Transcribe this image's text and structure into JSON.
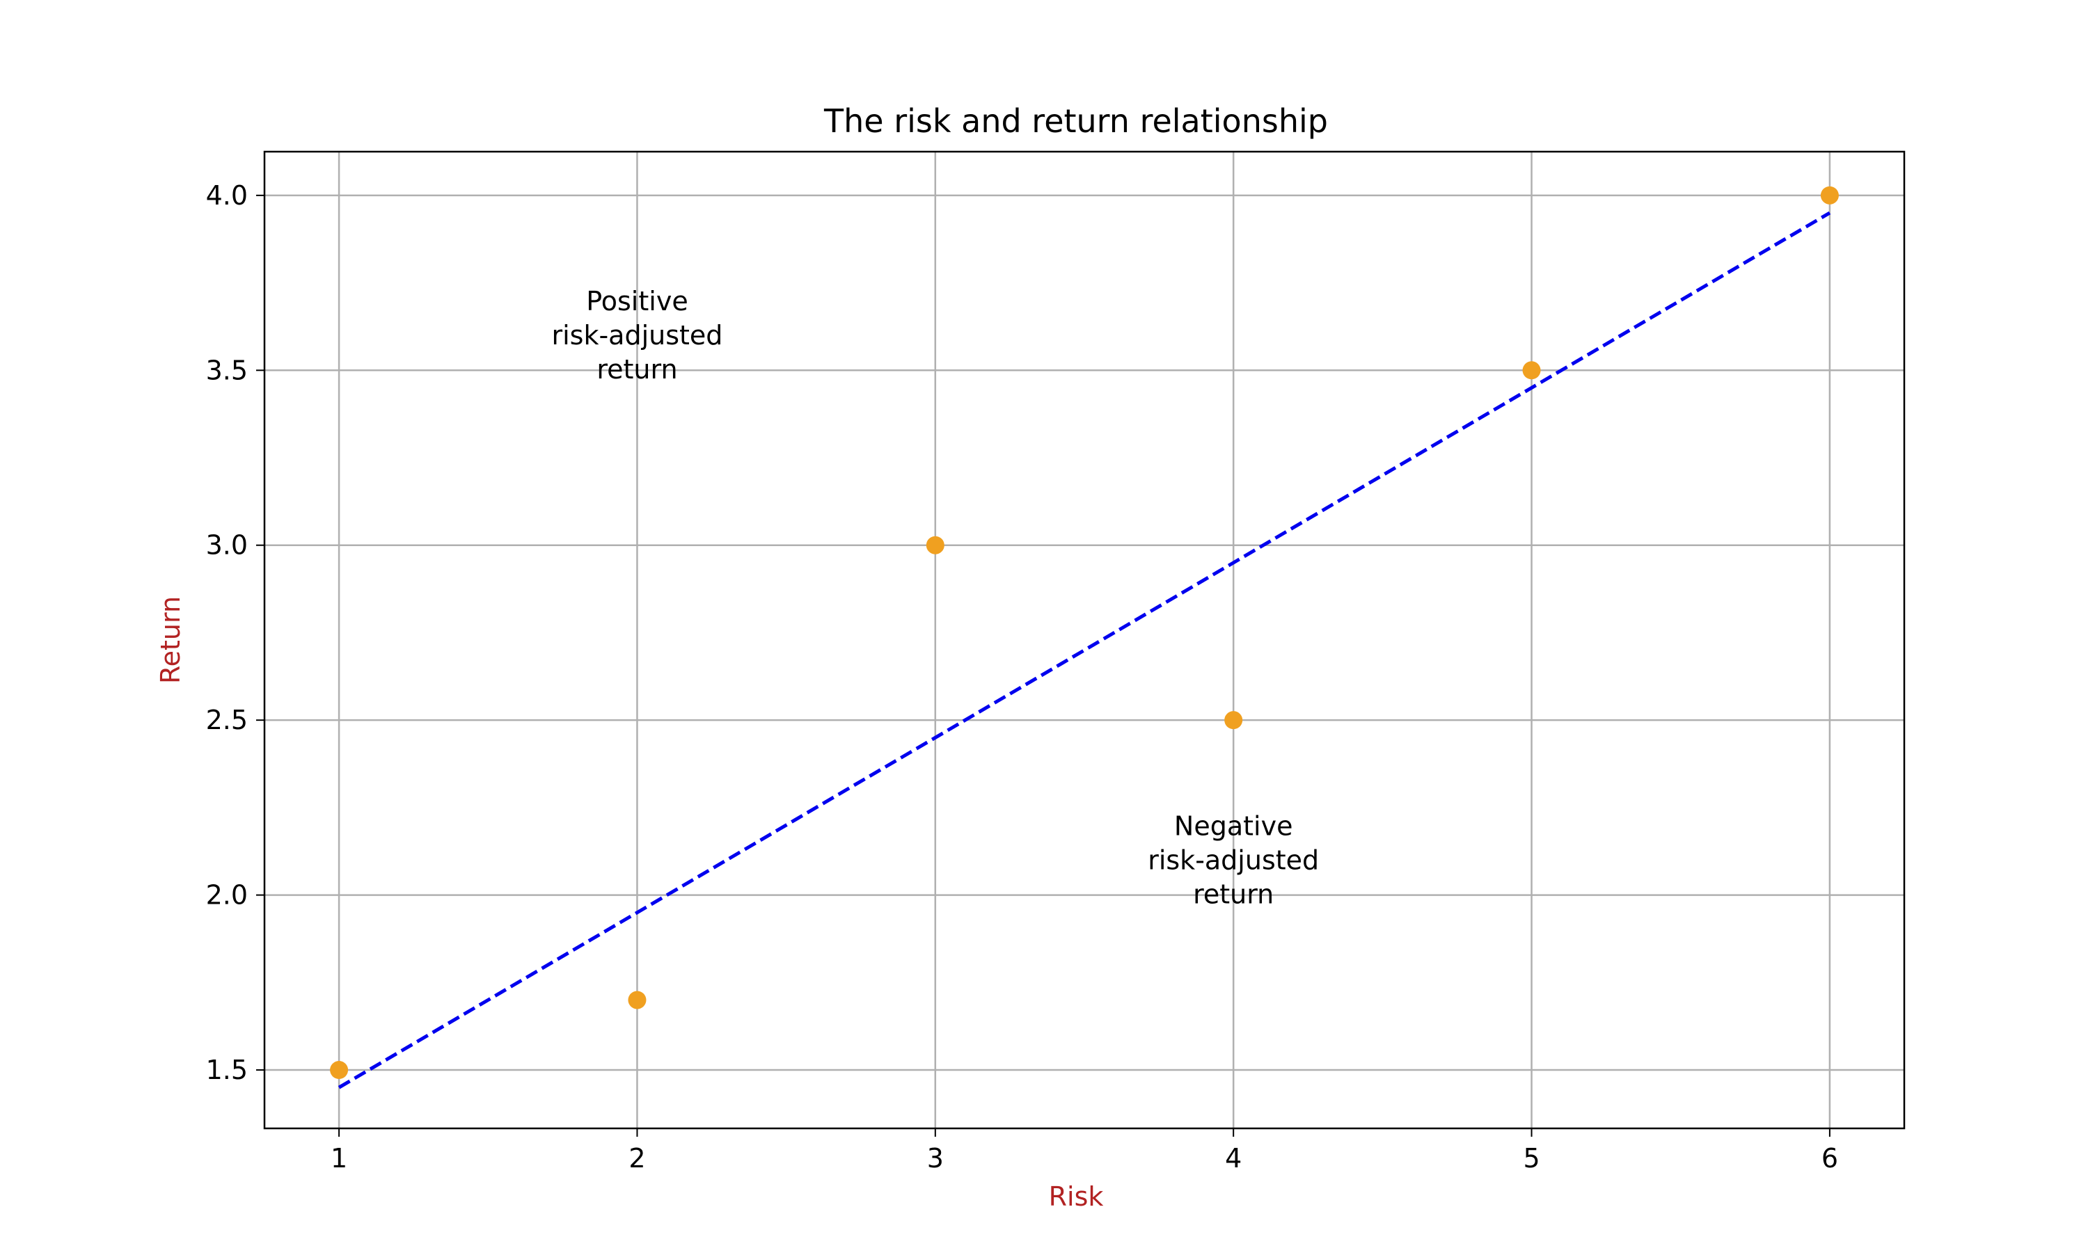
{
  "chart_data": {
    "type": "scatter",
    "title": "The risk and return relationship",
    "xlabel": "Risk",
    "ylabel": "Return",
    "xlim": [
      0.75,
      6.25
    ],
    "ylim": [
      1.333,
      4.125
    ],
    "xticks": [
      1,
      2,
      3,
      4,
      5,
      6
    ],
    "xtick_labels": [
      "1",
      "2",
      "3",
      "4",
      "5",
      "6"
    ],
    "yticks": [
      1.5,
      2.0,
      2.5,
      3.0,
      3.5,
      4.0
    ],
    "ytick_labels": [
      "1.5",
      "2.0",
      "2.5",
      "3.0",
      "3.5",
      "4.0"
    ],
    "grid": true,
    "series": [
      {
        "kind": "scatter",
        "color": "#f0a020",
        "points": [
          {
            "x": 1,
            "y": 1.5
          },
          {
            "x": 2,
            "y": 1.7
          },
          {
            "x": 3,
            "y": 3.0
          },
          {
            "x": 4,
            "y": 2.5
          },
          {
            "x": 5,
            "y": 3.5
          },
          {
            "x": 6,
            "y": 4.0
          }
        ]
      },
      {
        "kind": "line",
        "style": "dashed",
        "color": "#0000ee",
        "points": [
          {
            "x": 1,
            "y": 1.45
          },
          {
            "x": 6,
            "y": 3.95
          }
        ]
      }
    ],
    "annotations": [
      {
        "x": 2,
        "y": 3.6,
        "lines": [
          "Positive",
          "risk-adjusted",
          "return"
        ]
      },
      {
        "x": 4,
        "y": 2.1,
        "lines": [
          "Negative",
          "risk-adjusted",
          "return"
        ]
      }
    ],
    "colors": {
      "axis_label": "#b22222",
      "grid": "#b0b0b0",
      "frame": "#000000"
    }
  }
}
